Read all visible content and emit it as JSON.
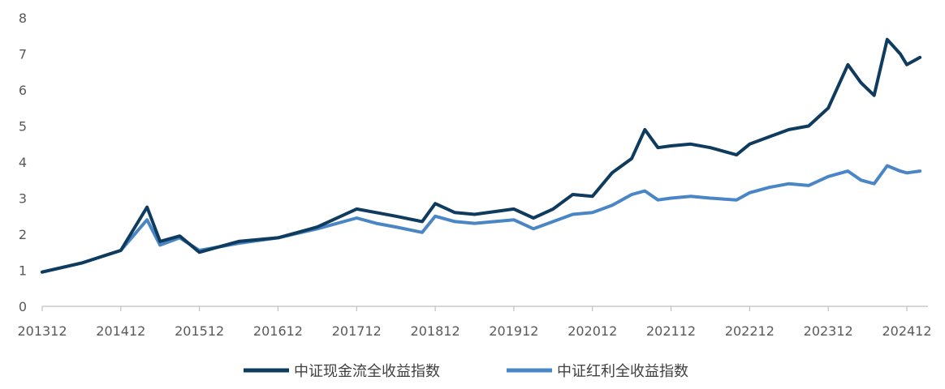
{
  "chart_data": {
    "type": "line",
    "title": "",
    "xlabel": "",
    "ylabel": "",
    "ylim": [
      0,
      8
    ],
    "yticks": [
      0,
      1,
      2,
      3,
      4,
      5,
      6,
      7,
      8
    ],
    "xticks": [
      "201312",
      "201412",
      "201512",
      "201612",
      "201712",
      "201812",
      "201912",
      "202012",
      "202112",
      "202212",
      "202312",
      "202412"
    ],
    "x": [
      "201312",
      "201406",
      "201412",
      "201504",
      "201506",
      "201509",
      "201512",
      "201603",
      "201606",
      "201612",
      "201706",
      "201712",
      "201803",
      "201806",
      "201810",
      "201812",
      "201903",
      "201906",
      "201912",
      "202003",
      "202006",
      "202009",
      "202012",
      "202103",
      "202106",
      "202108",
      "202110",
      "202112",
      "202203",
      "202206",
      "202210",
      "202212",
      "202303",
      "202306",
      "202309",
      "202312",
      "202403",
      "202405",
      "202407",
      "202409",
      "202411",
      "202412",
      "202502"
    ],
    "series": [
      {
        "name": "中证现金流全收益指数",
        "color": "#0e3b5e",
        "values": [
          0.95,
          1.2,
          1.55,
          2.75,
          1.8,
          1.95,
          1.5,
          1.65,
          1.8,
          1.9,
          2.2,
          2.7,
          2.6,
          2.5,
          2.35,
          2.85,
          2.6,
          2.55,
          2.7,
          2.45,
          2.7,
          3.1,
          3.05,
          3.7,
          4.1,
          4.9,
          4.4,
          4.45,
          4.5,
          4.4,
          4.2,
          4.5,
          4.7,
          4.9,
          5.0,
          5.5,
          6.7,
          6.2,
          5.85,
          7.4,
          7.0,
          6.7,
          6.9
        ]
      },
      {
        "name": "中证红利全收益指数",
        "color": "#4a86c5",
        "values": [
          0.95,
          1.2,
          1.55,
          2.4,
          1.7,
          1.9,
          1.55,
          1.65,
          1.75,
          1.9,
          2.15,
          2.45,
          2.3,
          2.2,
          2.05,
          2.5,
          2.35,
          2.3,
          2.4,
          2.15,
          2.35,
          2.55,
          2.6,
          2.8,
          3.1,
          3.2,
          2.95,
          3.0,
          3.05,
          3.0,
          2.95,
          3.15,
          3.3,
          3.4,
          3.35,
          3.6,
          3.75,
          3.5,
          3.4,
          3.9,
          3.75,
          3.7,
          3.75
        ]
      }
    ],
    "legend_position": "bottom",
    "grid": false
  }
}
